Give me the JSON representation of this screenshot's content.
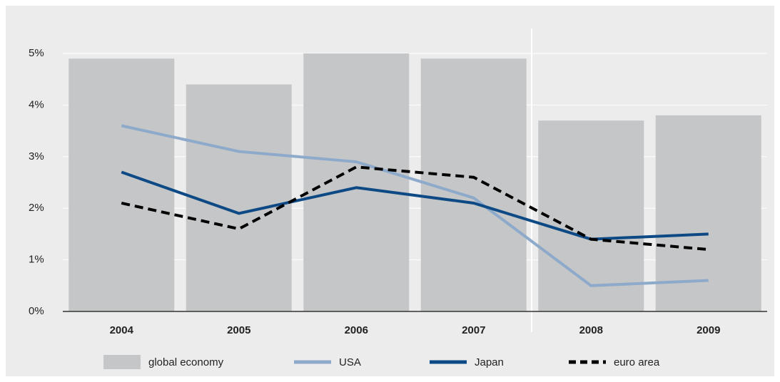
{
  "chart_data": {
    "type": "combo",
    "categories": [
      "2004",
      "2005",
      "2006",
      "2007",
      "2008",
      "2009"
    ],
    "series": [
      {
        "name": "global economy",
        "type": "bar",
        "color": "#c5c6c7",
        "values": [
          4.9,
          4.4,
          5.0,
          4.9,
          3.7,
          3.8
        ]
      },
      {
        "name": "USA",
        "type": "line",
        "color": "#8eaacb",
        "dashed": false,
        "values": [
          3.6,
          3.1,
          2.9,
          2.2,
          0.5,
          0.6
        ]
      },
      {
        "name": "Japan",
        "type": "line",
        "color": "#0d4a85",
        "dashed": false,
        "values": [
          2.7,
          1.9,
          2.4,
          2.1,
          1.4,
          1.5
        ]
      },
      {
        "name": "euro area",
        "type": "line",
        "color": "#000000",
        "dashed": true,
        "values": [
          2.1,
          1.6,
          2.8,
          2.6,
          1.4,
          1.2
        ]
      }
    ],
    "ylim": [
      0,
      5
    ],
    "yticks": [
      {
        "value": 0,
        "label": "0%"
      },
      {
        "value": 1,
        "label": "1%"
      },
      {
        "value": 2,
        "label": "2%"
      },
      {
        "value": 3,
        "label": "3%"
      },
      {
        "value": 4,
        "label": "4%"
      },
      {
        "value": 5,
        "label": "5%"
      }
    ],
    "grid": true
  }
}
